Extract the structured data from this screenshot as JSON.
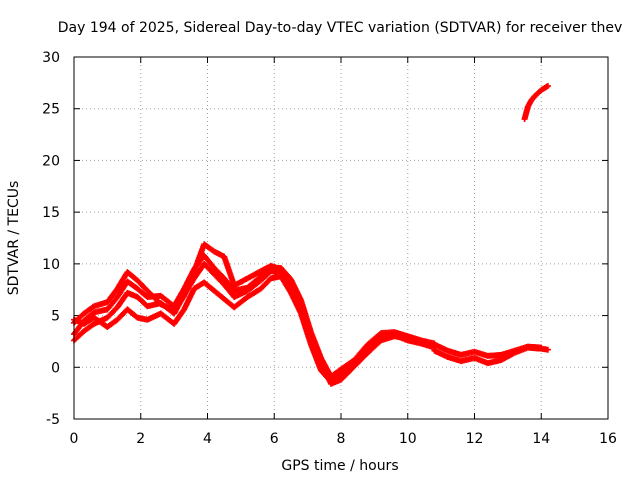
{
  "chart_data": {
    "type": "scatter",
    "title": "Day 194 of 2025, Sidereal Day-to-day VTEC variation (SDTVAR) for receiver thev",
    "xlabel": "GPS time / hours",
    "ylabel": "SDTVAR / TECUs",
    "xlim": [
      0,
      16
    ],
    "ylim": [
      -5,
      30
    ],
    "xticks": [
      "0",
      "2",
      "4",
      "6",
      "8",
      "10",
      "12",
      "14",
      "16"
    ],
    "yticks": [
      "-5",
      "0",
      "5",
      "10",
      "15",
      "20",
      "25",
      "30"
    ],
    "grid": true,
    "series_color": "#ff0000",
    "series": [
      {
        "name": "trace-1",
        "x": [
          0.0,
          0.3,
          0.6,
          1.0,
          1.3,
          1.6,
          1.9,
          2.2,
          2.6,
          3.0,
          3.3,
          3.6,
          3.9,
          4.2,
          4.5,
          4.8,
          5.2,
          5.6,
          5.9,
          6.2,
          6.5,
          6.8,
          7.1,
          7.4,
          7.7,
          8.0,
          8.4,
          8.8,
          9.2,
          9.6,
          10.0,
          10.4,
          10.8
        ],
        "y": [
          2.6,
          3.5,
          4.2,
          4.8,
          5.8,
          7.2,
          6.8,
          5.9,
          6.2,
          5.2,
          7.0,
          8.6,
          10.0,
          9.0,
          8.0,
          6.8,
          7.4,
          8.4,
          9.3,
          9.2,
          7.8,
          5.6,
          2.6,
          0.2,
          -1.2,
          -0.6,
          0.4,
          1.8,
          2.9,
          3.1,
          2.6,
          2.3,
          1.9
        ]
      },
      {
        "name": "trace-2",
        "x": [
          0.0,
          0.3,
          0.6,
          1.0,
          1.3,
          1.6,
          1.9,
          2.2,
          2.6,
          3.0,
          3.3,
          3.6,
          3.9,
          4.2,
          4.5,
          4.8,
          5.2,
          5.6,
          5.9,
          6.2,
          6.5,
          6.8,
          7.1,
          7.4,
          7.7,
          8.0,
          8.4,
          8.8,
          9.2,
          9.6,
          10.0,
          10.4,
          10.8
        ],
        "y": [
          3.2,
          4.5,
          5.3,
          5.6,
          6.8,
          8.3,
          7.6,
          6.8,
          6.9,
          5.9,
          7.6,
          9.5,
          10.8,
          9.6,
          8.6,
          7.4,
          7.7,
          8.8,
          9.6,
          9.6,
          8.5,
          6.5,
          3.4,
          0.9,
          -0.9,
          -0.2,
          0.7,
          2.2,
          3.3,
          3.4,
          3.0,
          2.6,
          2.3
        ]
      },
      {
        "name": "trace-3",
        "x": [
          0.0,
          0.3,
          0.6,
          1.0,
          1.3,
          1.6,
          1.9,
          2.2,
          2.6,
          3.0,
          3.3,
          3.6,
          3.9,
          4.2,
          4.5,
          4.8,
          5.2,
          5.6,
          5.9,
          6.2,
          6.5,
          6.8,
          7.1,
          7.4,
          7.7,
          8.0,
          8.4,
          8.8,
          9.2,
          9.6,
          10.0,
          10.4,
          10.8
        ],
        "y": [
          4.3,
          5.2,
          5.9,
          6.3,
          7.6,
          9.2,
          8.4,
          7.4,
          6.1,
          5.5,
          6.9,
          9.3,
          11.9,
          11.2,
          10.7,
          7.9,
          8.6,
          9.3,
          9.8,
          9.5,
          8.2,
          6.0,
          3.0,
          0.6,
          -1.6,
          -1.2,
          0.1,
          1.4,
          2.6,
          3.0,
          2.8,
          2.5,
          2.1
        ]
      },
      {
        "name": "trace-4",
        "x": [
          0.0,
          0.3,
          0.6,
          1.0,
          1.3,
          1.6,
          1.9,
          2.2,
          2.6,
          3.0,
          3.3,
          3.6,
          3.9,
          4.2,
          4.5,
          4.8,
          5.2,
          5.6,
          5.9,
          6.2,
          6.5,
          6.8,
          7.1,
          7.4,
          7.7,
          8.0,
          8.4,
          8.8,
          9.2,
          9.6,
          10.0,
          10.4,
          10.8
        ],
        "y": [
          4.6,
          4.2,
          4.8,
          3.9,
          4.6,
          5.6,
          4.8,
          4.6,
          5.2,
          4.2,
          5.6,
          7.6,
          8.2,
          7.4,
          6.6,
          5.8,
          6.8,
          7.6,
          8.6,
          8.8,
          7.2,
          5.2,
          2.2,
          -0.3,
          -1.4,
          -0.9,
          0.5,
          2.0,
          3.0,
          3.2,
          2.7,
          2.4,
          2.0
        ]
      },
      {
        "name": "trace-5",
        "x": [
          10.8,
          11.2,
          11.6,
          12.0,
          12.4,
          12.8,
          13.2,
          13.6,
          14.0,
          14.2
        ],
        "y": [
          1.6,
          1.0,
          0.6,
          0.9,
          0.4,
          0.7,
          1.4,
          1.9,
          1.8,
          1.7
        ]
      },
      {
        "name": "trace-6",
        "x": [
          10.8,
          11.2,
          11.6,
          12.0,
          12.4,
          12.8,
          13.2,
          13.6,
          14.0
        ],
        "y": [
          2.2,
          1.6,
          1.2,
          1.5,
          1.1,
          1.2,
          1.6,
          2.0,
          1.9
        ]
      },
      {
        "name": "trace-7",
        "x": [
          13.5,
          13.6,
          13.7,
          13.8,
          13.9,
          14.0,
          14.1,
          14.2
        ],
        "y": [
          24.0,
          25.2,
          25.8,
          26.2,
          26.5,
          26.8,
          27.0,
          27.2
        ]
      }
    ]
  }
}
